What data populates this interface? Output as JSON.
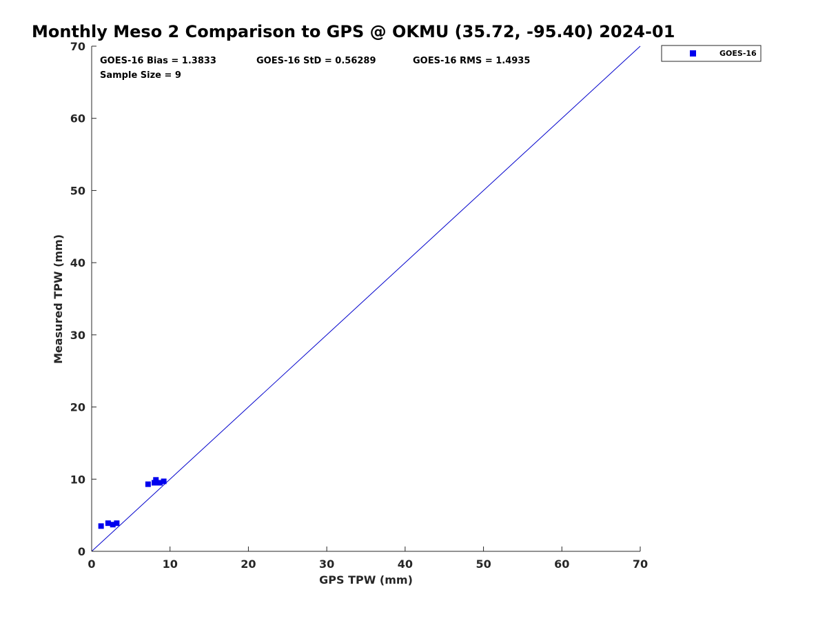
{
  "chart_data": {
    "type": "scatter",
    "title": "Monthly Meso 2 Comparison to GPS @ OKMU (35.72, -95.40) 2024-01",
    "xlabel": "GPS TPW (mm)",
    "ylabel": "Measured TPW (mm)",
    "xlim": [
      0,
      70
    ],
    "ylim": [
      0,
      70
    ],
    "xticks": [
      "0",
      "10",
      "20",
      "30",
      "40",
      "50",
      "60",
      "70"
    ],
    "yticks": [
      "0",
      "10",
      "20",
      "30",
      "40",
      "50",
      "60",
      "70"
    ],
    "grid": false,
    "legend_position": "outside-top-right",
    "reference_line": {
      "x": [
        0,
        70
      ],
      "y": [
        0,
        70
      ],
      "color": "#0000cc"
    },
    "series": [
      {
        "name": "GOES-16",
        "color": "#0000ee",
        "marker": "square",
        "x": [
          1.2,
          2.1,
          2.7,
          3.2,
          7.2,
          8.0,
          8.2,
          8.7,
          9.2
        ],
        "y": [
          3.5,
          3.9,
          3.7,
          3.9,
          9.3,
          9.5,
          9.9,
          9.5,
          9.7
        ]
      }
    ],
    "annotations": {
      "bias": "GOES-16 Bias = 1.3833",
      "std": "GOES-16 StD = 0.56289",
      "rms": "GOES-16 RMS = 1.4935",
      "sample_size": "Sample Size = 9"
    }
  }
}
